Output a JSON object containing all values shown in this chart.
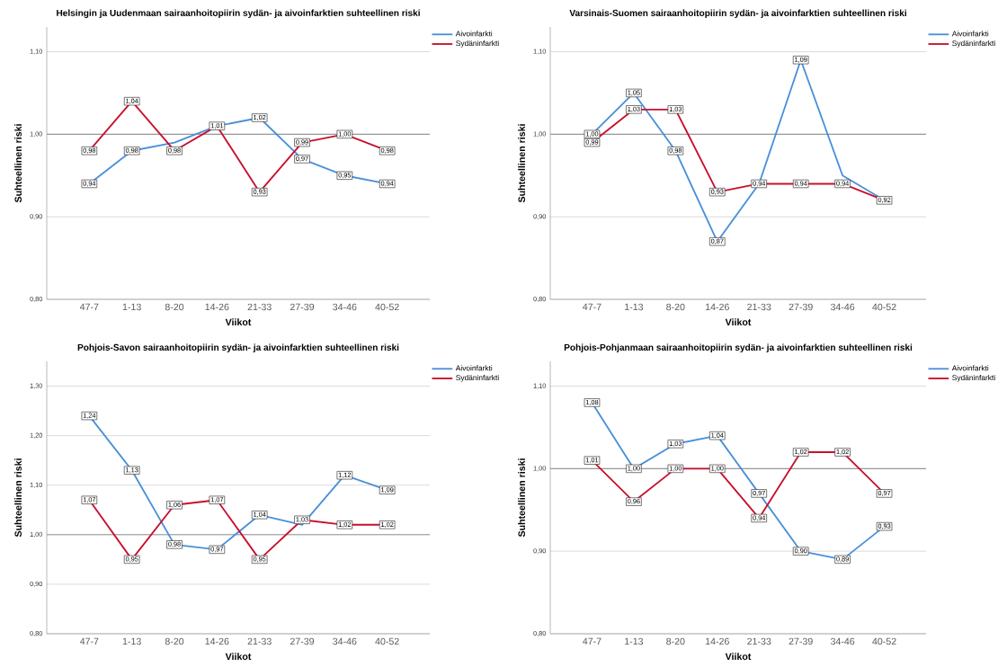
{
  "chart_data": [
    {
      "type": "line",
      "marker": "square",
      "title": "Helsingin ja Uudenmaan sairaanhoitopiirin sydän- ja aivoinfarktien suhteellinen riski",
      "xlabel": "Viikot",
      "ylabel": "Suhteellinen riski",
      "categories": [
        "47-7",
        "1-13",
        "8-20",
        "14-26",
        "21-33",
        "27-39",
        "34-46",
        "40-52"
      ],
      "series": [
        {
          "name": "Aivoinfarkti",
          "color": "#4a90d9",
          "values": [
            0.94,
            0.98,
            0.99,
            1.01,
            1.02,
            0.97,
            0.95,
            0.94
          ],
          "value_labels": [
            "0,94",
            "0,98",
            null,
            null,
            "1,02",
            "0,97",
            "0,95",
            "0,94"
          ]
        },
        {
          "name": "Sydäninfarkti",
          "color": "#c8102e",
          "values": [
            0.98,
            1.04,
            0.98,
            1.01,
            0.93,
            0.99,
            1.0,
            0.98
          ],
          "value_labels": [
            "0,98",
            "1,04",
            "0,98",
            "1,01",
            "0,93",
            "0,99",
            "1,00",
            "0,98"
          ]
        }
      ],
      "ylim": [
        0.8,
        1.13
      ],
      "yticks": [
        {
          "value": 0.8,
          "label": "0,80"
        },
        {
          "value": 0.9,
          "label": "0,90"
        },
        {
          "value": 1.0,
          "label": "1,00"
        },
        {
          "value": 1.1,
          "label": "1,10"
        }
      ],
      "grid": "y",
      "legend": "top right",
      "ref_lines": [
        {
          "axis": "y",
          "value": 1.0,
          "color": "#999999"
        }
      ]
    },
    {
      "type": "line",
      "marker": "square",
      "title": "Varsinais-Suomen sairaanhoitopiirin sydän- ja aivoinfarktien suhteellinen riski",
      "xlabel": "Viikot",
      "ylabel": "Suhteellinen riski",
      "categories": [
        "47-7",
        "1-13",
        "8-20",
        "14-26",
        "21-33",
        "27-39",
        "34-46",
        "40-52"
      ],
      "series": [
        {
          "name": "Aivoinfarkti",
          "color": "#4a90d9",
          "values": [
            1.0,
            1.05,
            0.98,
            0.87,
            0.94,
            1.09,
            0.95,
            0.92
          ],
          "value_labels": [
            "1,00",
            "1,05",
            "0,98",
            "0,87",
            null,
            "1,09",
            null,
            null
          ]
        },
        {
          "name": "Sydäninfarkti",
          "color": "#c8102e",
          "values": [
            0.99,
            1.03,
            1.03,
            0.93,
            0.94,
            0.94,
            0.94,
            0.92
          ],
          "value_labels": [
            "0,99",
            "1,03",
            "1,03",
            "0,93",
            "0,94",
            "0,94",
            "0,94",
            "0,92"
          ]
        }
      ],
      "ylim": [
        0.8,
        1.13
      ],
      "yticks": [
        {
          "value": 0.8,
          "label": "0,80"
        },
        {
          "value": 0.9,
          "label": "0,90"
        },
        {
          "value": 1.0,
          "label": "1,00"
        },
        {
          "value": 1.1,
          "label": "1,10"
        }
      ],
      "grid": "y",
      "legend": "top right",
      "ref_lines": [
        {
          "axis": "y",
          "value": 1.0,
          "color": "#999999"
        }
      ]
    },
    {
      "type": "line",
      "title": "Pohjois-Savon sairaanhoitopiirin sydän- ja aivoinfarktien suhteellinen riski",
      "xlabel": "Viikot",
      "ylabel": "Suhteellinen riski",
      "categories": [
        "47-7",
        "1-13",
        "8-20",
        "14-26",
        "21-33",
        "27-39",
        "34-46",
        "40-52"
      ],
      "series": [
        {
          "name": "Aivoinfarkti",
          "color": "#4a90d9",
          "values": [
            1.24,
            1.13,
            0.98,
            0.97,
            1.04,
            1.02,
            1.12,
            1.09
          ],
          "value_labels": [
            "1,24",
            "1,13",
            "0,98",
            "0,97",
            "1,04",
            null,
            "1,12",
            "1,09"
          ]
        },
        {
          "name": "Sydäninfarkti",
          "color": "#c8102e",
          "values": [
            1.07,
            0.95,
            1.06,
            1.07,
            0.95,
            1.03,
            1.02,
            1.02
          ],
          "value_labels": [
            "1,07",
            "0,95",
            "1,06",
            "1,07",
            "0,95",
            "1,03",
            "1,02",
            "1,02"
          ]
        }
      ],
      "marker": "square",
      "ylim": [
        0.8,
        1.35
      ],
      "yticks": [
        {
          "value": 0.8,
          "label": "0,80"
        },
        {
          "value": 0.9,
          "label": "0,90"
        },
        {
          "value": 1.0,
          "label": "1,00"
        },
        {
          "value": 1.1,
          "label": "1,10"
        },
        {
          "value": 1.2,
          "label": "1,20"
        },
        {
          "value": 1.3,
          "label": "1,30"
        }
      ],
      "grid": "y",
      "legend": "top right",
      "ref_lines": [
        {
          "axis": "y",
          "value": 1.0,
          "color": "#999999"
        }
      ]
    },
    {
      "type": "line",
      "marker": "square",
      "title": "Pohjois-Pohjanmaan sairaanhoitopiirin sydän- ja aivoinfarktien suhteellinen riski",
      "xlabel": "Viikot",
      "ylabel": "Suhteellinen riski",
      "categories": [
        "47-7",
        "1-13",
        "8-20",
        "14-26",
        "21-33",
        "27-39",
        "34-46",
        "40-52"
      ],
      "series": [
        {
          "name": "Aivoinfarkti",
          "color": "#4a90d9",
          "values": [
            1.08,
            1.0,
            1.03,
            1.04,
            0.97,
            0.9,
            0.89,
            0.93
          ],
          "value_labels": [
            "1,08",
            "1,00",
            "1,03",
            "1,04",
            "0,97",
            "0,90",
            "0,89",
            "0,93"
          ]
        },
        {
          "name": "Sydäninfarkti",
          "color": "#c8102e",
          "values": [
            1.01,
            0.96,
            1.0,
            1.0,
            0.94,
            1.02,
            1.02,
            0.97
          ],
          "value_labels": [
            "1,01",
            "0,96",
            "1,00",
            "1,00",
            "0,94",
            "1,02",
            "1,02",
            "0,97"
          ]
        }
      ],
      "ylim": [
        0.8,
        1.13
      ],
      "yticks": [
        {
          "value": 0.8,
          "label": "0,80"
        },
        {
          "value": 0.9,
          "label": "0,90"
        },
        {
          "value": 1.0,
          "label": "1,00"
        },
        {
          "value": 1.1,
          "label": "1,10"
        }
      ],
      "grid": "y",
      "legend": "top right",
      "ref_lines": [
        {
          "axis": "y",
          "value": 1.0,
          "color": "#999999"
        }
      ]
    }
  ]
}
